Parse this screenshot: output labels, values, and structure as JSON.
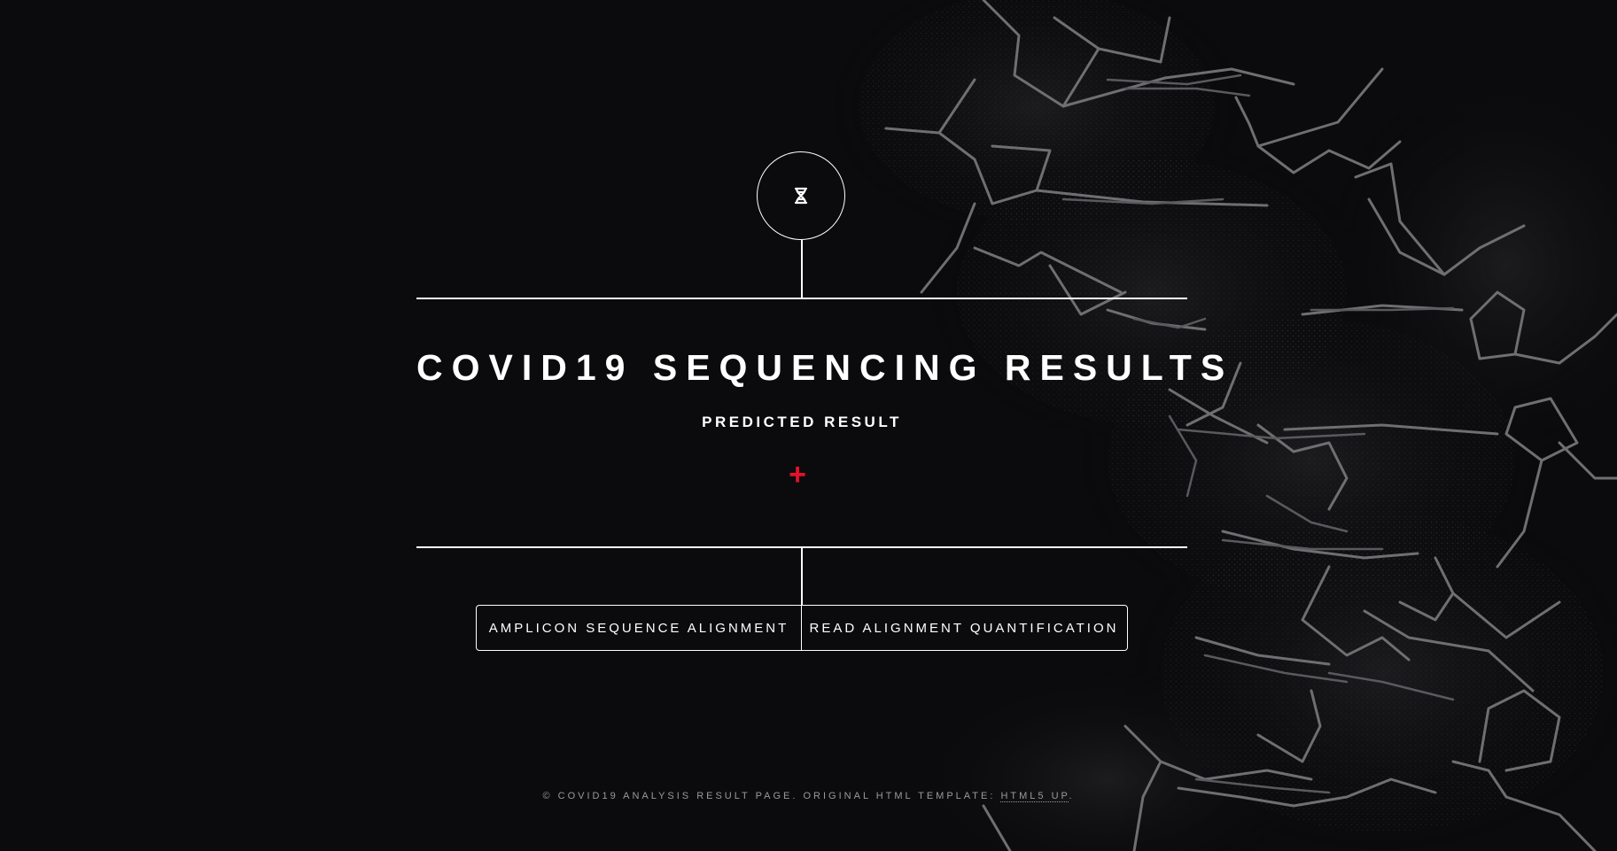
{
  "header": {
    "logo_icon": "dna-icon",
    "title": "COVID19 SEQUENCING RESULTS",
    "subtitle": "PREDICTED RESULT",
    "result_symbol": "+",
    "result_color": "#e5112a"
  },
  "nav": {
    "items": [
      {
        "label": "AMPLICON SEQUENCE ALIGNMENT"
      },
      {
        "label": "READ ALIGNMENT QUANTIFICATION"
      }
    ]
  },
  "footer": {
    "text": "© COVID19 ANALYSIS RESULT PAGE. ORIGINAL HTML TEMPLATE: ",
    "link_label": "HTML5 UP",
    "suffix": "."
  },
  "colors": {
    "background": "#0b0b0d",
    "foreground": "#ffffff",
    "accent": "#e5112a"
  }
}
